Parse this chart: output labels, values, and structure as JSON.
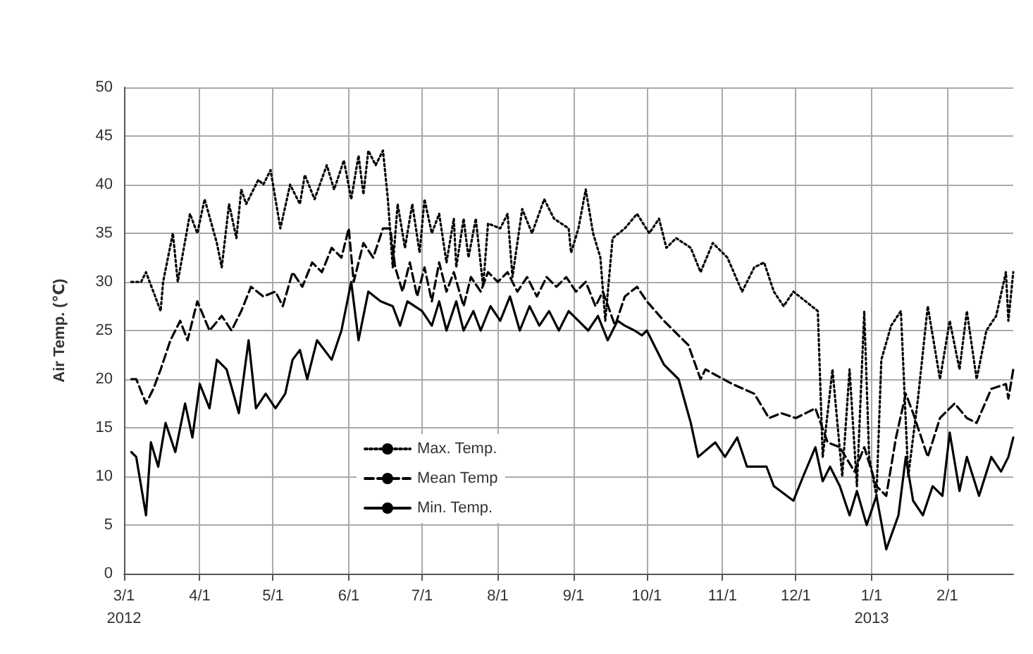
{
  "chart_data": {
    "type": "line",
    "ylabel": "Air Temp. (℃)",
    "xlim": [
      "2012-03-01",
      "2013-02-28"
    ],
    "ylim": [
      0,
      50
    ],
    "yticks": [
      0,
      5,
      10,
      15,
      20,
      25,
      30,
      35,
      40,
      45,
      50
    ],
    "xticks": [
      {
        "value": "2012-03-01",
        "label": "3/1\n2012"
      },
      {
        "value": "2012-04-01",
        "label": "4/1"
      },
      {
        "value": "2012-05-01",
        "label": "5/1"
      },
      {
        "value": "2012-06-01",
        "label": "6/1"
      },
      {
        "value": "2012-07-01",
        "label": "7/1"
      },
      {
        "value": "2012-08-01",
        "label": "8/1"
      },
      {
        "value": "2012-09-01",
        "label": "9/1"
      },
      {
        "value": "2012-10-01",
        "label": "10/1"
      },
      {
        "value": "2012-11-01",
        "label": "11/1"
      },
      {
        "value": "2012-12-01",
        "label": "12/1"
      },
      {
        "value": "2013-01-01",
        "label": "1/1\n2013"
      },
      {
        "value": "2013-02-01",
        "label": "2/1"
      }
    ],
    "grid": true,
    "legend": "bottom",
    "marker": "none",
    "series": [
      {
        "name": "Max. Temp.",
        "color": "#000000",
        "line_style": "dotted",
        "x": [
          "2012-03-04",
          "2012-03-08",
          "2012-03-10",
          "2012-03-16",
          "2012-03-17",
          "2012-03-21",
          "2012-03-23",
          "2012-03-28",
          "2012-03-31",
          "2012-04-03",
          "2012-04-08",
          "2012-04-10",
          "2012-04-13",
          "2012-04-16",
          "2012-04-18",
          "2012-04-20",
          "2012-04-25",
          "2012-04-27",
          "2012-04-30",
          "2012-05-04",
          "2012-05-08",
          "2012-05-12",
          "2012-05-14",
          "2012-05-18",
          "2012-05-23",
          "2012-05-26",
          "2012-05-30",
          "2012-06-02",
          "2012-06-05",
          "2012-06-07",
          "2012-06-09",
          "2012-06-12",
          "2012-06-15",
          "2012-06-17",
          "2012-06-19",
          "2012-06-21",
          "2012-06-24",
          "2012-06-27",
          "2012-06-30",
          "2012-07-02",
          "2012-07-05",
          "2012-07-08",
          "2012-07-11",
          "2012-07-14",
          "2012-07-15",
          "2012-07-18",
          "2012-07-20",
          "2012-07-23",
          "2012-07-26",
          "2012-07-28",
          "2012-08-02",
          "2012-08-05",
          "2012-08-07",
          "2012-08-11",
          "2012-08-15",
          "2012-08-20",
          "2012-08-24",
          "2012-08-30",
          "2012-08-31",
          "2012-09-03",
          "2012-09-06",
          "2012-09-09",
          "2012-09-12",
          "2012-09-14",
          "2012-09-17",
          "2012-09-22",
          "2012-09-27",
          "2012-10-02",
          "2012-10-06",
          "2012-10-09",
          "2012-10-13",
          "2012-10-19",
          "2012-10-23",
          "2012-10-28",
          "2012-11-03",
          "2012-11-09",
          "2012-11-14",
          "2012-11-18",
          "2012-11-22",
          "2012-11-26",
          "2012-11-30",
          "2012-12-05",
          "2012-12-10",
          "2012-12-12",
          "2012-12-16",
          "2012-12-20",
          "2012-12-23",
          "2012-12-26",
          "2012-12-29",
          "2012-12-31",
          "2013-01-03",
          "2013-01-05",
          "2013-01-09",
          "2013-01-13",
          "2013-01-16",
          "2013-01-20",
          "2013-01-24",
          "2013-01-29",
          "2013-02-02",
          "2013-02-06",
          "2013-02-09",
          "2013-02-13",
          "2013-02-17",
          "2013-02-21",
          "2013-02-25",
          "2013-02-26",
          "2013-02-28"
        ],
        "values": [
          30,
          30,
          31,
          27,
          30,
          35,
          30,
          37,
          35,
          38.5,
          34,
          31.5,
          38,
          34.5,
          39.5,
          38,
          40.5,
          40,
          41.5,
          35.5,
          40,
          38,
          41,
          38.5,
          42,
          39.5,
          42.5,
          38.5,
          43,
          39,
          43.5,
          42,
          43.5,
          38.5,
          31.5,
          38,
          33.5,
          38,
          33,
          38.5,
          35,
          37,
          32,
          36.5,
          31.5,
          36.5,
          32.5,
          36.5,
          29.5,
          36,
          35.5,
          37,
          30.5,
          37.5,
          35,
          38.5,
          36.5,
          35.5,
          33,
          35.5,
          39.5,
          35,
          32.5,
          26,
          34.5,
          35.5,
          37,
          35,
          36.5,
          33.5,
          34.5,
          33.5,
          31,
          34,
          32.5,
          29,
          31.5,
          32,
          29,
          27.5,
          29,
          28,
          27,
          12,
          21,
          10,
          21,
          9,
          27,
          12,
          8,
          22,
          25.5,
          27,
          10,
          18,
          27.5,
          20,
          26,
          21,
          27,
          20,
          25,
          26.5,
          31,
          26,
          31
        ]
      },
      {
        "name": "Mean Temp",
        "color": "#000000",
        "line_style": "dashed",
        "x": [
          "2012-03-04",
          "2012-03-06",
          "2012-03-10",
          "2012-03-13",
          "2012-03-16",
          "2012-03-20",
          "2012-03-24",
          "2012-03-27",
          "2012-03-31",
          "2012-04-05",
          "2012-04-10",
          "2012-04-14",
          "2012-04-18",
          "2012-04-22",
          "2012-04-27",
          "2012-05-02",
          "2012-05-05",
          "2012-05-09",
          "2012-05-13",
          "2012-05-17",
          "2012-05-21",
          "2012-05-25",
          "2012-05-29",
          "2012-06-01",
          "2012-06-03",
          "2012-06-07",
          "2012-06-11",
          "2012-06-15",
          "2012-06-18",
          "2012-06-20",
          "2012-06-23",
          "2012-06-26",
          "2012-06-29",
          "2012-07-02",
          "2012-07-05",
          "2012-07-08",
          "2012-07-11",
          "2012-07-14",
          "2012-07-18",
          "2012-07-21",
          "2012-07-25",
          "2012-07-28",
          "2012-08-01",
          "2012-08-05",
          "2012-08-09",
          "2012-08-13",
          "2012-08-17",
          "2012-08-21",
          "2012-08-25",
          "2012-08-29",
          "2012-09-02",
          "2012-09-06",
          "2012-09-10",
          "2012-09-13",
          "2012-09-18",
          "2012-09-22",
          "2012-09-27",
          "2012-10-01",
          "2012-10-08",
          "2012-10-18",
          "2012-10-23",
          "2012-10-25",
          "2012-11-05",
          "2012-11-14",
          "2012-11-20",
          "2012-11-25",
          "2012-12-01",
          "2012-12-09",
          "2012-12-14",
          "2012-12-19",
          "2012-12-25",
          "2012-12-29",
          "2013-01-03",
          "2013-01-07",
          "2013-01-11",
          "2013-01-15",
          "2013-01-18",
          "2013-01-24",
          "2013-01-29",
          "2013-02-04",
          "2013-02-09",
          "2013-02-13",
          "2013-02-19",
          "2013-02-25",
          "2013-02-26",
          "2013-02-28"
        ],
        "values": [
          20,
          20,
          17.5,
          19,
          21,
          24,
          26,
          24,
          28,
          25,
          26.5,
          25,
          27,
          29.5,
          28.5,
          29,
          27.5,
          31,
          29.5,
          32,
          31,
          33.5,
          32.5,
          35.5,
          30,
          34,
          32.5,
          35.5,
          35.5,
          31.5,
          29,
          32,
          28.5,
          31.5,
          28,
          32,
          29,
          31,
          27.5,
          30.5,
          29,
          31,
          30,
          31,
          29,
          30.5,
          28.5,
          30.5,
          29.5,
          30.5,
          29,
          30,
          27.5,
          29,
          25.5,
          28.5,
          29.5,
          28,
          26,
          23.5,
          20,
          21,
          19.5,
          18.5,
          16,
          16.5,
          16,
          17,
          13.5,
          13,
          10.5,
          13,
          9,
          8,
          14,
          18.5,
          16.5,
          12,
          16,
          17.5,
          16,
          15.5,
          19,
          19.5,
          18,
          21
        ]
      },
      {
        "name": "Min. Temp.",
        "color": "#000000",
        "line_style": "solid",
        "x": [
          "2012-03-04",
          "2012-03-06",
          "2012-03-10",
          "2012-03-12",
          "2012-03-15",
          "2012-03-18",
          "2012-03-22",
          "2012-03-26",
          "2012-03-29",
          "2012-04-01",
          "2012-04-05",
          "2012-04-08",
          "2012-04-12",
          "2012-04-17",
          "2012-04-21",
          "2012-04-24",
          "2012-04-28",
          "2012-05-02",
          "2012-05-06",
          "2012-05-09",
          "2012-05-12",
          "2012-05-15",
          "2012-05-19",
          "2012-05-25",
          "2012-05-29",
          "2012-06-02",
          "2012-06-05",
          "2012-06-09",
          "2012-06-14",
          "2012-06-19",
          "2012-06-22",
          "2012-06-25",
          "2012-07-01",
          "2012-07-05",
          "2012-07-08",
          "2012-07-11",
          "2012-07-15",
          "2012-07-18",
          "2012-07-22",
          "2012-07-25",
          "2012-07-29",
          "2012-08-02",
          "2012-08-06",
          "2012-08-10",
          "2012-08-14",
          "2012-08-18",
          "2012-08-22",
          "2012-08-26",
          "2012-08-30",
          "2012-09-03",
          "2012-09-07",
          "2012-09-11",
          "2012-09-15",
          "2012-09-19",
          "2012-09-22",
          "2012-09-26",
          "2012-09-29",
          "2012-10-01",
          "2012-10-08",
          "2012-10-14",
          "2012-10-19",
          "2012-10-22",
          "2012-10-29",
          "2012-11-02",
          "2012-11-07",
          "2012-11-11",
          "2012-11-19",
          "2012-11-22",
          "2012-11-30",
          "2012-12-04",
          "2012-12-09",
          "2012-12-12",
          "2012-12-15",
          "2012-12-19",
          "2012-12-23",
          "2012-12-26",
          "2012-12-30",
          "2013-01-03",
          "2013-01-07",
          "2013-01-12",
          "2013-01-15",
          "2013-01-18",
          "2013-01-22",
          "2013-01-26",
          "2013-01-30",
          "2013-02-02",
          "2013-02-06",
          "2013-02-09",
          "2013-02-14",
          "2013-02-19",
          "2013-02-23",
          "2013-02-26",
          "2013-02-28"
        ],
        "values": [
          12.5,
          12,
          6,
          13.5,
          11,
          15.5,
          12.5,
          17.5,
          14,
          19.5,
          17,
          22,
          21,
          16.5,
          24,
          17,
          18.5,
          17,
          18.5,
          22,
          23,
          20,
          24,
          22,
          25,
          30,
          24,
          29,
          28,
          27.5,
          25.5,
          28,
          27,
          25.5,
          28,
          25,
          28,
          25,
          27,
          25,
          27.5,
          26,
          28.5,
          25,
          27.5,
          25.5,
          27,
          25,
          27,
          26,
          25,
          26.5,
          24,
          26,
          25.5,
          25,
          24.5,
          25,
          21.5,
          20,
          15.5,
          12,
          13.5,
          12,
          14,
          11,
          11,
          9,
          7.5,
          10,
          13,
          9.5,
          11,
          9,
          6,
          8.5,
          5,
          8,
          2.5,
          6,
          12,
          7.5,
          6,
          9,
          8,
          14.5,
          8.5,
          12,
          8,
          12,
          10.5,
          12,
          14
        ]
      }
    ]
  }
}
